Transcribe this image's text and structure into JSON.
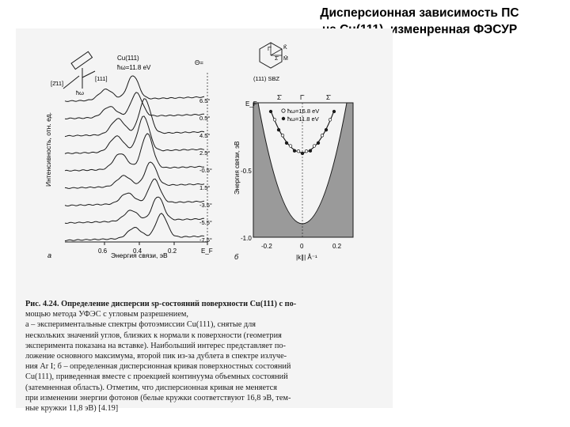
{
  "slide": {
    "title_line1": "Дисперсионная зависимость ПС",
    "title_line2": "на Cu(111), изменренная ФЭСУР"
  },
  "panel_a": {
    "letter": "а",
    "crystal": "Cu(111)",
    "photon": "ħω=11.8 eV",
    "theta_header": "Θ=",
    "axis_sample_dir": "[2̄11]",
    "axis_normal": "[111]",
    "hv_label": "ħω",
    "ylabel": "Интенсивность, отн. ед.",
    "xlabel": "Энергия связи, эВ",
    "xticks": [
      "0.6",
      "0.4",
      "0.2",
      "E_F"
    ],
    "angles": [
      "6.5°",
      "0.5°",
      "4.5°",
      "2.5°",
      "-0.5°",
      "1.5°",
      "-3.5°",
      "-5.5°",
      "-7.5°"
    ]
  },
  "panel_b": {
    "letter": "б",
    "sbz_label": "(111) SBZ",
    "sbz_points": [
      "Γ̄",
      "K̄",
      "M̄",
      "Σ̄"
    ],
    "ylabel": "Энергия связи, эВ",
    "yticks": [
      "E_F",
      "-0.5",
      "-1.0"
    ],
    "xlabel": "|k∥|  Å⁻¹",
    "xticks": [
      "-0.2",
      "0",
      "0.2"
    ],
    "top_labels": [
      "Σ̄",
      "Γ̄",
      "Σ̄"
    ],
    "legend": [
      {
        "label": "ħω=16.8 eV",
        "marker": "open-circle"
      },
      {
        "label": "ħω=11.8 eV",
        "marker": "filled-circle"
      }
    ]
  },
  "caption": {
    "line1": "Рис. 4.24. Определение дисперсии sp-состояний поверхности Cu(111) с по-",
    "line2": "мощью метода УФЭС с угловым разрешением,",
    "line3": "а – экспериментальные спектры фотоэмиссии Cu(111), снятые для",
    "line4": "нескольких значений углов, близких к нормали к поверхности (геометрия",
    "line5": "эксперимента показана на вставке). Наибольший интерес представляет по-",
    "line6": "ложение основного максимума, второй пик из-за дублета в спектре излуче-",
    "line7": "ния Ar I; б – определенная дисперсионная кривая поверхностных состояний",
    "line8": "Cu(111), приведенная вместе с проекцией континуума объемных состояний",
    "line9": "(затемненная область). Отметим, что дисперсионная кривая не меняется",
    "line10": "при изменении энергии фотонов (белые кружки соответствуют 16,8 эВ, тем-",
    "line11": "ные кружки 11,8 эВ) [4.19]"
  },
  "colors": {
    "background": "#ffffff",
    "scan": "#f4f4f4",
    "shade": "#9a9a9a",
    "ink": "#1a1a1a"
  }
}
